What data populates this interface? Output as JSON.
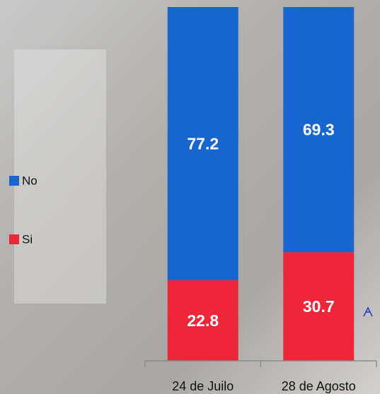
{
  "chart_data": {
    "type": "stacked_bar",
    "categories": [
      "24 de Juilo",
      "28 de Agosto"
    ],
    "series": [
      {
        "name": "Si",
        "color": "#ef2638",
        "values": [
          22.8,
          30.7
        ]
      },
      {
        "name": "No",
        "color": "#1766cf",
        "values": [
          77.2,
          69.3
        ]
      }
    ],
    "ylim": [
      0,
      100
    ],
    "legend": "left"
  }
}
